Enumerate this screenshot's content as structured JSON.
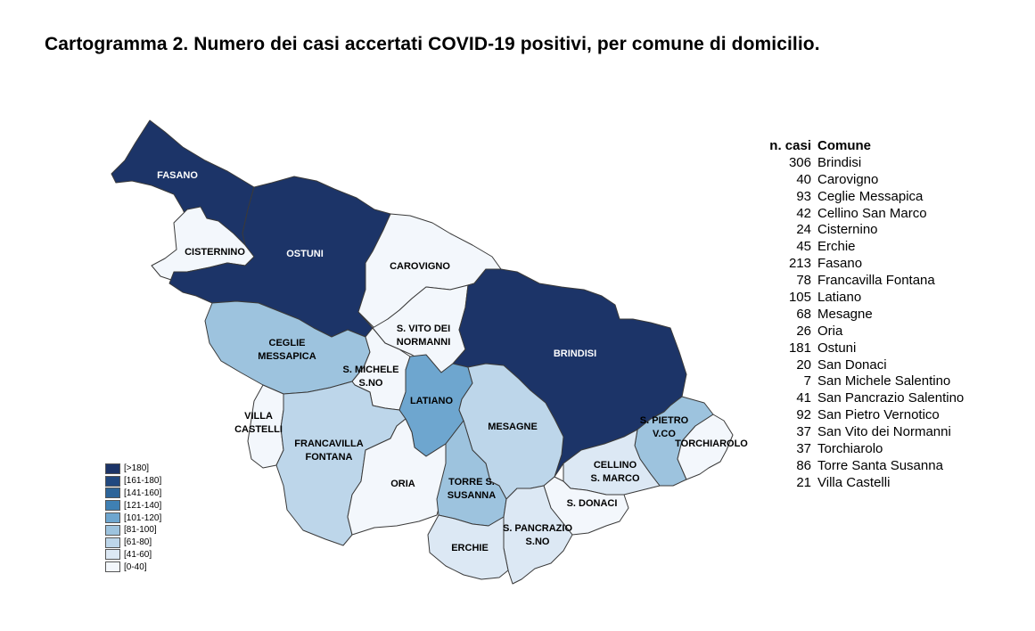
{
  "title": "Cartogramma 2. Numero dei casi accertati COVID-19 positivi, per comune di domicilio.",
  "classes": [
    {
      "label": "[>180]",
      "color": "#1c3468"
    },
    {
      "label": "[161-180]",
      "color": "#21487f"
    },
    {
      "label": "[141-160]",
      "color": "#2c6499"
    },
    {
      "label": "[121-140]",
      "color": "#3f80b3"
    },
    {
      "label": "[101-120]",
      "color": "#6ea6cf"
    },
    {
      "label": "[81-100]",
      "color": "#9dc3de"
    },
    {
      "label": "[61-80]",
      "color": "#bdd6ea"
    },
    {
      "label": "[41-60]",
      "color": "#dce8f4"
    },
    {
      "label": "[0-40]",
      "color": "#f3f7fc"
    }
  ],
  "table": {
    "header_count": "n. casi",
    "header_name": "Comune",
    "rows": [
      {
        "count": "306",
        "name": "Brindisi"
      },
      {
        "count": "40",
        "name": "Carovigno"
      },
      {
        "count": "93",
        "name": "Ceglie Messapica"
      },
      {
        "count": "42",
        "name": "Cellino San Marco"
      },
      {
        "count": "24",
        "name": "Cisternino"
      },
      {
        "count": "45",
        "name": "Erchie"
      },
      {
        "count": "213",
        "name": "Fasano"
      },
      {
        "count": "78",
        "name": "Francavilla Fontana"
      },
      {
        "count": "105",
        "name": "Latiano"
      },
      {
        "count": "68",
        "name": "Mesagne"
      },
      {
        "count": "26",
        "name": "Oria"
      },
      {
        "count": "181",
        "name": "Ostuni"
      },
      {
        "count": "20",
        "name": "San Donaci"
      },
      {
        "count": "7",
        "name": "San Michele Salentino"
      },
      {
        "count": "41",
        "name": "San Pancrazio Salentino"
      },
      {
        "count": "92",
        "name": "San Pietro Vernotico"
      },
      {
        "count": "37",
        "name": "San Vito dei Normanni"
      },
      {
        "count": "37",
        "name": "Torchiarolo"
      },
      {
        "count": "86",
        "name": "Torre Santa Susanna"
      },
      {
        "count": "21",
        "name": "Villa Castelli"
      }
    ]
  },
  "map_labels": {
    "fasano": [
      "FASANO"
    ],
    "ostuni": [
      "OSTUNI"
    ],
    "cisternino": [
      "CISTERNINO"
    ],
    "carovigno": [
      "CAROVIGNO"
    ],
    "ceglie": [
      "CEGLIE",
      "MESSAPICA"
    ],
    "svito": [
      "S. VITO DEI",
      "NORMANNI"
    ],
    "smichele": [
      "S. MICHELE",
      "S.NO"
    ],
    "brindisi": [
      "BRINDISI"
    ],
    "latiano": [
      "LATIANO"
    ],
    "villacastelli": [
      "VILLA",
      "CASTELLI"
    ],
    "francavilla": [
      "FRANCAVILLA",
      "FONTANA"
    ],
    "mesagne": [
      "MESAGNE"
    ],
    "spietro": [
      "S. PIETRO",
      "V.CO"
    ],
    "torchiarolo": [
      "TORCHIAROLO"
    ],
    "cellino": [
      "CELLINO",
      "S. MARCO"
    ],
    "oria": [
      "ORIA"
    ],
    "torre": [
      "TORRE S.",
      "SUSANNA"
    ],
    "sdonaci": [
      "S. DONACI"
    ],
    "spancrazio": [
      "S. PANCRAZIO",
      "S.NO"
    ],
    "erchie": [
      "ERCHIE"
    ]
  },
  "map_values": {
    "fasano": 213,
    "ostuni": 181,
    "cisternino": 24,
    "carovigno": 40,
    "ceglie": 93,
    "svito": 37,
    "smichele": 7,
    "brindisi": 306,
    "latiano": 105,
    "villacastelli": 21,
    "francavilla": 78,
    "mesagne": 68,
    "spietro": 92,
    "torchiarolo": 37,
    "cellino": 42,
    "oria": 26,
    "torre": 86,
    "sdonaci": 20,
    "spancrazio": 41,
    "erchie": 45
  }
}
